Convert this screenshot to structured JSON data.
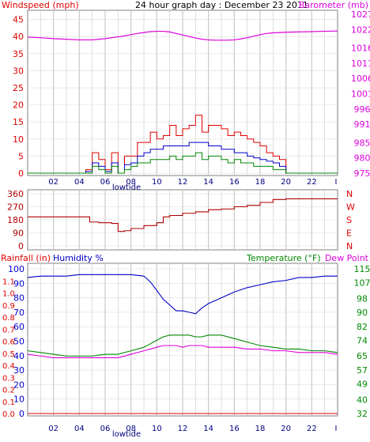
{
  "title": "24 hour graph day : December 23 2011",
  "colors": {
    "red": "#e00000",
    "blue": "#0000c8",
    "green": "#008800",
    "magenta": "#dd00dd",
    "grid": "#c8c8c8",
    "gridH": "#dcdcdc",
    "frame": "#808080",
    "maroon": "#b00000"
  },
  "x_ticks": [
    "02",
    "04",
    "06",
    "08",
    "10",
    "12",
    "14",
    "16",
    "18",
    "20",
    "22",
    "I"
  ],
  "lowtide_label": "lowtide",
  "panel1": {
    "left_label": "Windspeed (mph)",
    "right_label": "Barometer (mb)",
    "left_ticks": [
      "0",
      "5",
      "10",
      "15",
      "20",
      "25",
      "30",
      "35",
      "40",
      "45"
    ],
    "right_ticks": [
      "975",
      "980",
      "985",
      "991",
      "996",
      "1001",
      "1006",
      "1011",
      "1016",
      "1022",
      "1027"
    ]
  },
  "panel2": {
    "left_ticks": [
      "0",
      "90",
      "180",
      "270",
      "360"
    ],
    "right_ticks": [
      "N",
      "E",
      "S",
      "W",
      "N"
    ]
  },
  "panel3": {
    "left_label_rain": "Rainfall (in)",
    "left_label_hum": "Humidity %",
    "right_label_temp": "Temperature (°F)",
    "right_label_dew": "Dew Point",
    "rain_ticks": [
      "0.0",
      "0.1",
      "0.2",
      "0.3",
      "0.4",
      "0.5",
      "0.6",
      "0.7",
      "0.8",
      "0.9",
      "1.0",
      "1.1",
      "1"
    ],
    "hum_ticks": [
      "0",
      "10",
      "20",
      "30",
      "40",
      "50",
      "60",
      "70",
      "80",
      "90",
      "100"
    ],
    "temp_ticks": [
      "32",
      "40",
      "49",
      "57",
      "65",
      "74",
      "82",
      "90",
      "98",
      "107",
      "115"
    ]
  },
  "chart_data": [
    {
      "type": "line",
      "title": "24 hour graph day : December 23 2011",
      "xlabel": "",
      "x": [
        0,
        1,
        2,
        3,
        4,
        4.5,
        5,
        5.5,
        6,
        6.5,
        7,
        7.5,
        8,
        8.5,
        9,
        9.5,
        10,
        10.5,
        11,
        11.5,
        12,
        12.5,
        13,
        13.5,
        14,
        14.5,
        15,
        15.5,
        16,
        16.5,
        17,
        17.5,
        18,
        18.5,
        19,
        19.5,
        20,
        21,
        22,
        23,
        24
      ],
      "series": [
        {
          "name": "Windspeed (mph)",
          "axis": "left",
          "color": "red",
          "values": [
            0,
            0,
            0,
            0,
            0,
            1,
            6,
            4,
            1,
            6,
            0,
            5,
            5,
            9,
            9,
            12,
            10,
            11,
            14,
            11,
            13,
            14,
            17,
            12,
            14,
            14,
            13,
            11,
            12,
            11,
            10,
            9,
            8,
            6,
            5,
            4,
            0,
            0,
            0,
            0,
            0
          ]
        },
        {
          "name": "Gust",
          "axis": "left",
          "color": "blue",
          "values": [
            0,
            0,
            0,
            0,
            0,
            0.5,
            3,
            2,
            0.5,
            3,
            0,
            2.5,
            3,
            5,
            6,
            7,
            7,
            8,
            8,
            8,
            8,
            9,
            9,
            9,
            8,
            8,
            7,
            7,
            6,
            6,
            5,
            4.5,
            4,
            3.5,
            3,
            2,
            0,
            0,
            0,
            0,
            0
          ]
        },
        {
          "name": "Wind",
          "axis": "left",
          "color": "green",
          "values": [
            0,
            0,
            0,
            0,
            0,
            0,
            2,
            1,
            0,
            2,
            0,
            1,
            2,
            3,
            3,
            4,
            4,
            4,
            5,
            4,
            5,
            5,
            6,
            4,
            5,
            5,
            4,
            3,
            4,
            3,
            3,
            2,
            2,
            2,
            1,
            1,
            0,
            0,
            0,
            0,
            0
          ]
        },
        {
          "name": "Barometer (mb)",
          "axis": "right",
          "color": "magenta",
          "values": [
            1019.5,
            1019.3,
            1019.0,
            1018.8,
            1018.6,
            1018.6,
            1018.6,
            1018.8,
            1019.0,
            1019.3,
            1019.6,
            1019.9,
            1020.3,
            1020.7,
            1021.0,
            1021.3,
            1021.4,
            1021.4,
            1021.2,
            1020.7,
            1020.2,
            1019.7,
            1019.2,
            1018.8,
            1018.6,
            1018.5,
            1018.5,
            1018.5,
            1018.6,
            1018.9,
            1019.3,
            1019.8,
            1020.3,
            1020.7,
            1020.9,
            1021.0,
            1021.1,
            1021.2,
            1021.3,
            1021.4,
            1021.5
          ]
        }
      ],
      "ylim": [
        0,
        47
      ],
      "y2lim": [
        975,
        1027.5
      ]
    },
    {
      "type": "line",
      "ylabel": "",
      "x": [
        0,
        1,
        2,
        3,
        4,
        4.8,
        5.5,
        6.5,
        7,
        7.5,
        8,
        9,
        10,
        10.5,
        11,
        12,
        13,
        14,
        15,
        16,
        17,
        18,
        19,
        20,
        21,
        22,
        23,
        24
      ],
      "series": [
        {
          "name": "Wind direction",
          "color": "maroon",
          "values": [
            200,
            200,
            200,
            200,
            200,
            165,
            160,
            155,
            100,
            105,
            120,
            140,
            160,
            200,
            210,
            225,
            235,
            250,
            255,
            270,
            280,
            300,
            320,
            325,
            325,
            325,
            325,
            325
          ]
        }
      ],
      "ylim": [
        0,
        360
      ]
    },
    {
      "type": "line",
      "x": [
        0,
        1,
        2,
        3,
        4,
        5,
        6,
        7,
        8,
        9,
        9.5,
        10,
        10.5,
        11,
        11.5,
        12,
        12.5,
        13,
        13.5,
        14,
        15,
        16,
        17,
        18,
        19,
        20,
        21,
        22,
        23,
        24
      ],
      "series": [
        {
          "name": "Humidity %",
          "axis": "hum",
          "color": "blue",
          "values": [
            94,
            95,
            95,
            95,
            96,
            96,
            96,
            96,
            96,
            95,
            91,
            85,
            79,
            75,
            71,
            71,
            70,
            69,
            73,
            76,
            80,
            84,
            87,
            89,
            91,
            92,
            94,
            94,
            95,
            95
          ]
        },
        {
          "name": "Temperature (°F)",
          "axis": "temp",
          "color": "green",
          "values": [
            68,
            67,
            66,
            65,
            65,
            65,
            66,
            66,
            68,
            70,
            72,
            74,
            76,
            77,
            77,
            77,
            77,
            76,
            76,
            77,
            77,
            75,
            73,
            71,
            70,
            69,
            69,
            68,
            68,
            67
          ]
        },
        {
          "name": "Dew Point",
          "axis": "temp",
          "color": "magenta",
          "values": [
            66,
            65,
            64,
            64,
            64,
            64,
            64,
            64,
            66,
            68,
            69,
            70,
            71,
            71,
            71,
            70,
            71,
            71,
            71,
            70,
            70,
            70,
            69,
            69,
            68,
            68,
            67,
            67,
            67,
            66
          ]
        },
        {
          "name": "Rainfall (in)",
          "axis": "rain",
          "color": "red",
          "values": [
            0,
            0,
            0,
            0,
            0,
            0,
            0,
            0,
            0,
            0,
            0,
            0,
            0,
            0,
            0,
            0,
            0,
            0,
            0,
            0,
            0,
            0,
            0,
            0,
            0,
            0,
            0,
            0,
            0,
            0
          ]
        }
      ],
      "hum_lim": [
        0,
        100
      ],
      "temp_lim": [
        32,
        115
      ],
      "rain_lim": [
        0,
        1.2
      ]
    }
  ]
}
